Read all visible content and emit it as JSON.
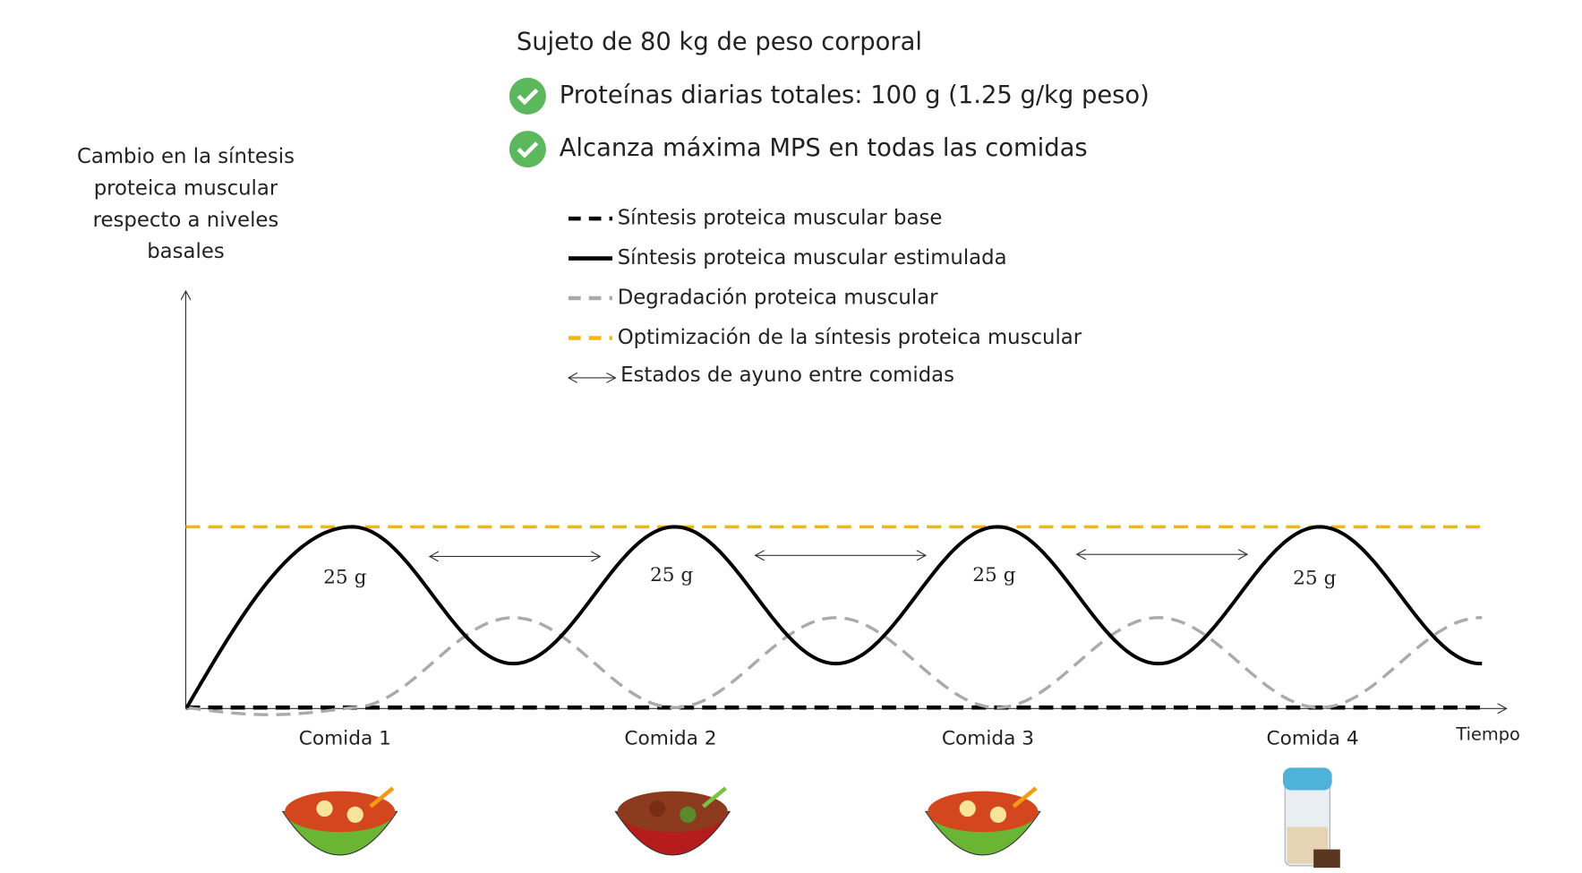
{
  "header": {
    "subject": "Sujeto de 80 kg de peso corporal",
    "checks": [
      "Proteínas diarias totales: 100 g (1.25 g/kg peso)",
      "Alcanza máxima MPS en todas las comidas"
    ]
  },
  "y_axis_label": [
    "Cambio en la síntesis",
    "proteica muscular",
    "respecto a niveles",
    "basales"
  ],
  "legend": [
    "Síntesis proteica muscular base",
    "Síntesis proteica muscular estimulada",
    "Degradación proteica muscular",
    "Optimización de la síntesis proteica muscular",
    "Estados de ayuno entre comidas"
  ],
  "doses": [
    "25 g",
    "25 g",
    "25 g",
    "25 g"
  ],
  "meals": [
    "Comida 1",
    "Comida 2",
    "Comida 3",
    "Comida 4"
  ],
  "x_axis_label": "Tiempo"
}
